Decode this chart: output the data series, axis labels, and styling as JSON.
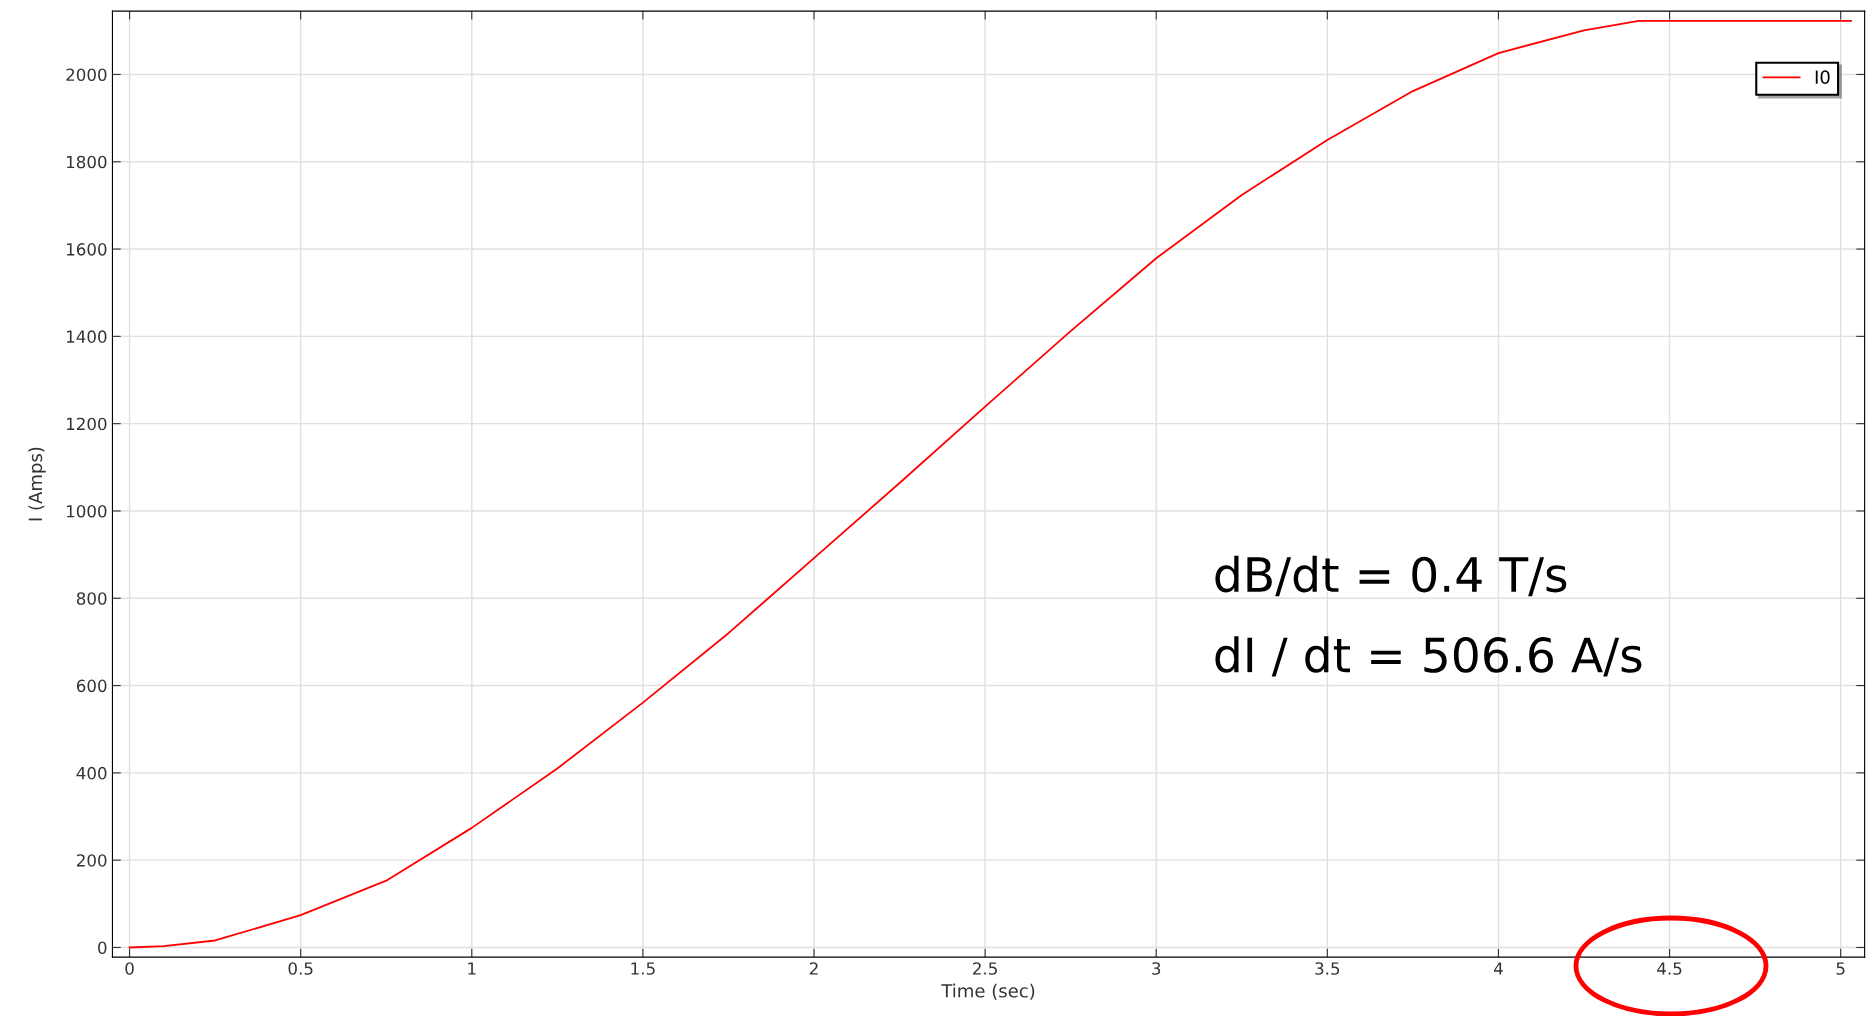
{
  "chart_data": {
    "type": "line",
    "xlabel": "Time (sec)",
    "ylabel": "I (Amps)",
    "x": [
      0,
      0.1,
      0.25,
      0.5,
      0.75,
      1,
      1.25,
      1.5,
      1.75,
      2,
      2.25,
      2.5,
      2.75,
      3,
      3.25,
      3.5,
      3.75,
      4,
      4.25,
      4.41,
      5.03
    ],
    "series": [
      {
        "name": "I0",
        "color": "#ff0000",
        "values": [
          0,
          3,
          16,
          74,
          153,
          274,
          410,
          561,
          720,
          892,
          1064,
          1239,
          1412,
          1579,
          1724,
          1850,
          1962,
          2049,
          2101,
          2123,
          2123
        ]
      }
    ],
    "xlim": [
      -0.05,
      5.07
    ],
    "ylim": [
      -22,
      2145
    ],
    "xticks": [
      0,
      0.5,
      1,
      1.5,
      2,
      2.5,
      3,
      3.5,
      4,
      4.5,
      5
    ],
    "yticks": [
      0,
      200,
      400,
      600,
      800,
      1000,
      1200,
      1400,
      1600,
      1800,
      2000
    ],
    "grid": true,
    "legend": "top right",
    "marker": "none",
    "line_style": "solid",
    "annotations": [
      "dB/dt = 0.4 T/s",
      "dI / dt = 506.6 A/s"
    ]
  }
}
